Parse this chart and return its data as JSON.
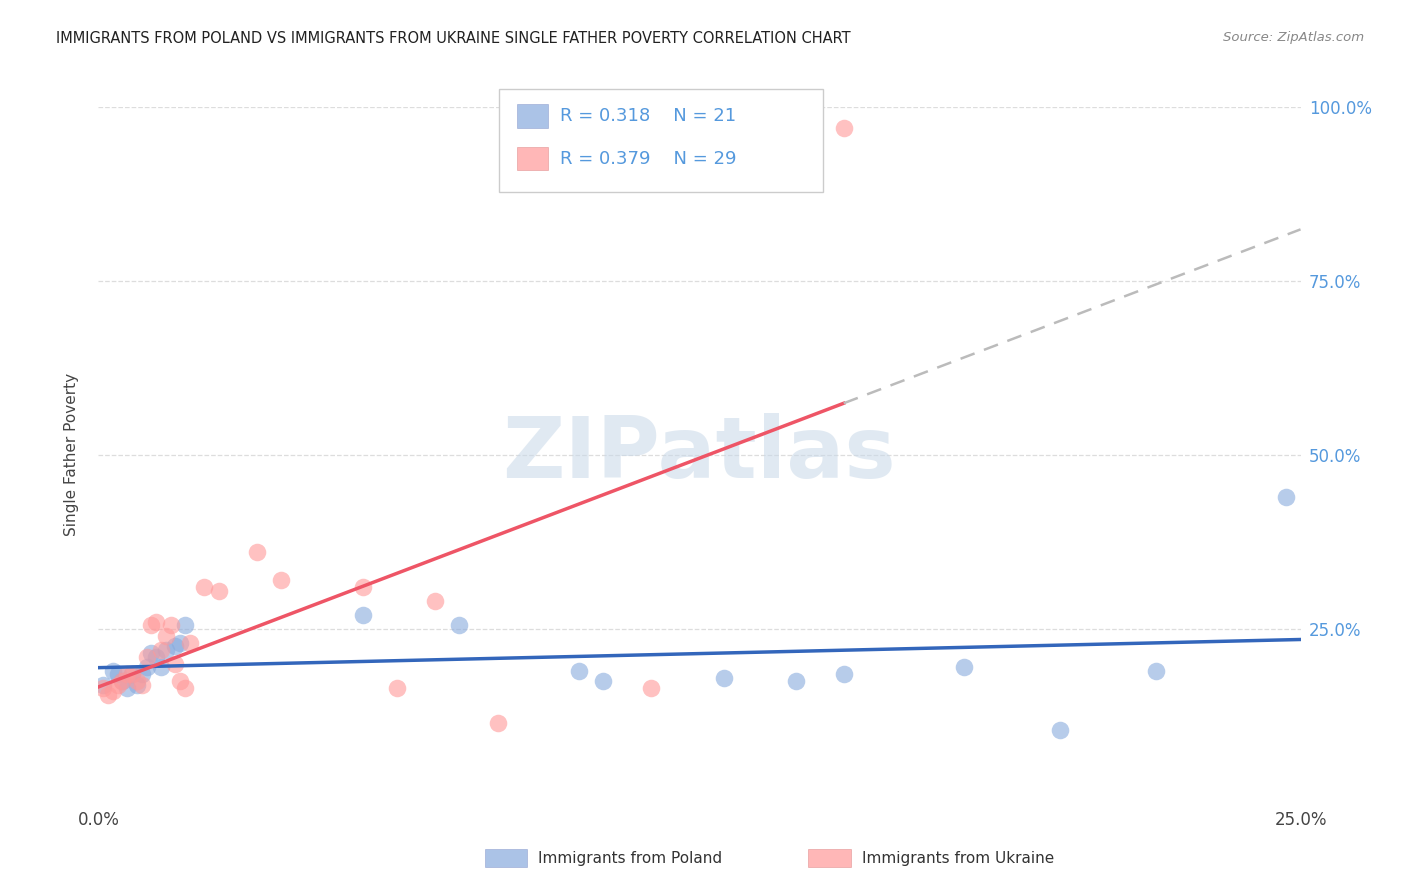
{
  "title": "IMMIGRANTS FROM POLAND VS IMMIGRANTS FROM UKRAINE SINGLE FATHER POVERTY CORRELATION CHART",
  "source": "Source: ZipAtlas.com",
  "ylabel": "Single Father Poverty",
  "R_poland": "0.318",
  "N_poland": "21",
  "R_ukraine": "0.379",
  "N_ukraine": "29",
  "color_poland": "#88AADD",
  "color_ukraine": "#FF9999",
  "color_poland_line": "#3366BB",
  "color_ukraine_line": "#EE5566",
  "color_dash": "#BBBBBB",
  "watermark_text": "ZIPatlas",
  "watermark_color": "#C8D8E8",
  "label_poland": "Immigrants from Poland",
  "label_ukraine": "Immigrants from Ukraine",
  "title_color": "#222222",
  "source_color": "#888888",
  "tick_color_right": "#5599DD",
  "poland_x": [
    0.001,
    0.003,
    0.004,
    0.005,
    0.006,
    0.007,
    0.008,
    0.009,
    0.01,
    0.011,
    0.012,
    0.013,
    0.014,
    0.016,
    0.017,
    0.018,
    0.055,
    0.075,
    0.1,
    0.105,
    0.13,
    0.145,
    0.155,
    0.18,
    0.2,
    0.22,
    0.247
  ],
  "poland_y": [
    0.17,
    0.19,
    0.185,
    0.175,
    0.165,
    0.185,
    0.17,
    0.185,
    0.195,
    0.215,
    0.21,
    0.195,
    0.22,
    0.225,
    0.23,
    0.255,
    0.27,
    0.255,
    0.19,
    0.175,
    0.18,
    0.175,
    0.185,
    0.195,
    0.105,
    0.19,
    0.44
  ],
  "ukraine_x": [
    0.001,
    0.002,
    0.003,
    0.004,
    0.005,
    0.006,
    0.007,
    0.008,
    0.009,
    0.01,
    0.011,
    0.012,
    0.013,
    0.014,
    0.015,
    0.016,
    0.017,
    0.018,
    0.019,
    0.022,
    0.025,
    0.033,
    0.038,
    0.055,
    0.062,
    0.07,
    0.083,
    0.115,
    0.155
  ],
  "ukraine_y": [
    0.165,
    0.155,
    0.16,
    0.17,
    0.175,
    0.185,
    0.185,
    0.175,
    0.17,
    0.21,
    0.255,
    0.26,
    0.22,
    0.24,
    0.255,
    0.2,
    0.175,
    0.165,
    0.23,
    0.31,
    0.305,
    0.36,
    0.32,
    0.31,
    0.165,
    0.29,
    0.115,
    0.165,
    0.97
  ],
  "xlim": [
    0,
    0.25
  ],
  "ylim": [
    0,
    1.0
  ],
  "xticks": [
    0,
    0.25
  ],
  "yticks": [
    0.25,
    0.5,
    0.75,
    1.0
  ],
  "xticklabels": [
    "0.0%",
    "25.0%"
  ],
  "yticklabels_right": [
    "25.0%",
    "50.0%",
    "75.0%",
    "100.0%"
  ]
}
